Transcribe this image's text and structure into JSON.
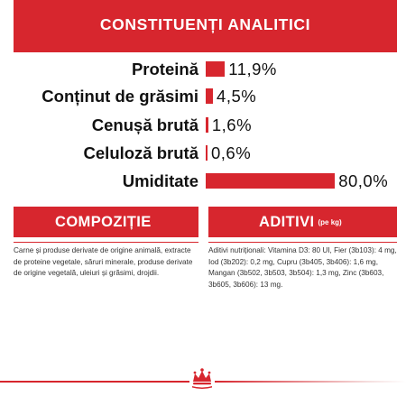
{
  "header": {
    "title": "CONSTITUENȚI ANALITICI"
  },
  "analytics": [
    {
      "label": "Proteină",
      "value": "11,9%",
      "percent": 11.9
    },
    {
      "label": "Conținut de grăsimi",
      "value": "4,5%",
      "percent": 4.5
    },
    {
      "label": "Cenușă brută",
      "value": "1,6%",
      "percent": 1.6
    },
    {
      "label": "Celuloză brută",
      "value": "0,6%",
      "percent": 0.6
    },
    {
      "label": "Umiditate",
      "value": "80,0%",
      "percent": 80.0
    }
  ],
  "composition": {
    "title": "COMPOZIȚIE",
    "text": "Carne și produse derivate de origine animală, extracte de proteine vegetale, săruri minerale, produse derivate de origine vegetală, uleiuri și grăsimi, drojdii."
  },
  "additives": {
    "title": "ADITIVI",
    "title_suffix": "(pe kg)",
    "text": "Aditivi nutriționali: Vitamina D3: 80 UI, Fier (3b103): 4 mg, Iod (3b202): 0,2 mg, Cupru (3b405, 3b406): 1,6 mg, Mangan (3b502, 3b503, 3b504): 1,3 mg, Zinc (3b603, 3b605, 3b606): 13 mg."
  },
  "colors": {
    "brand_red": "#d7262e"
  },
  "footer": {
    "logo_icon": "royal-crown-icon"
  }
}
